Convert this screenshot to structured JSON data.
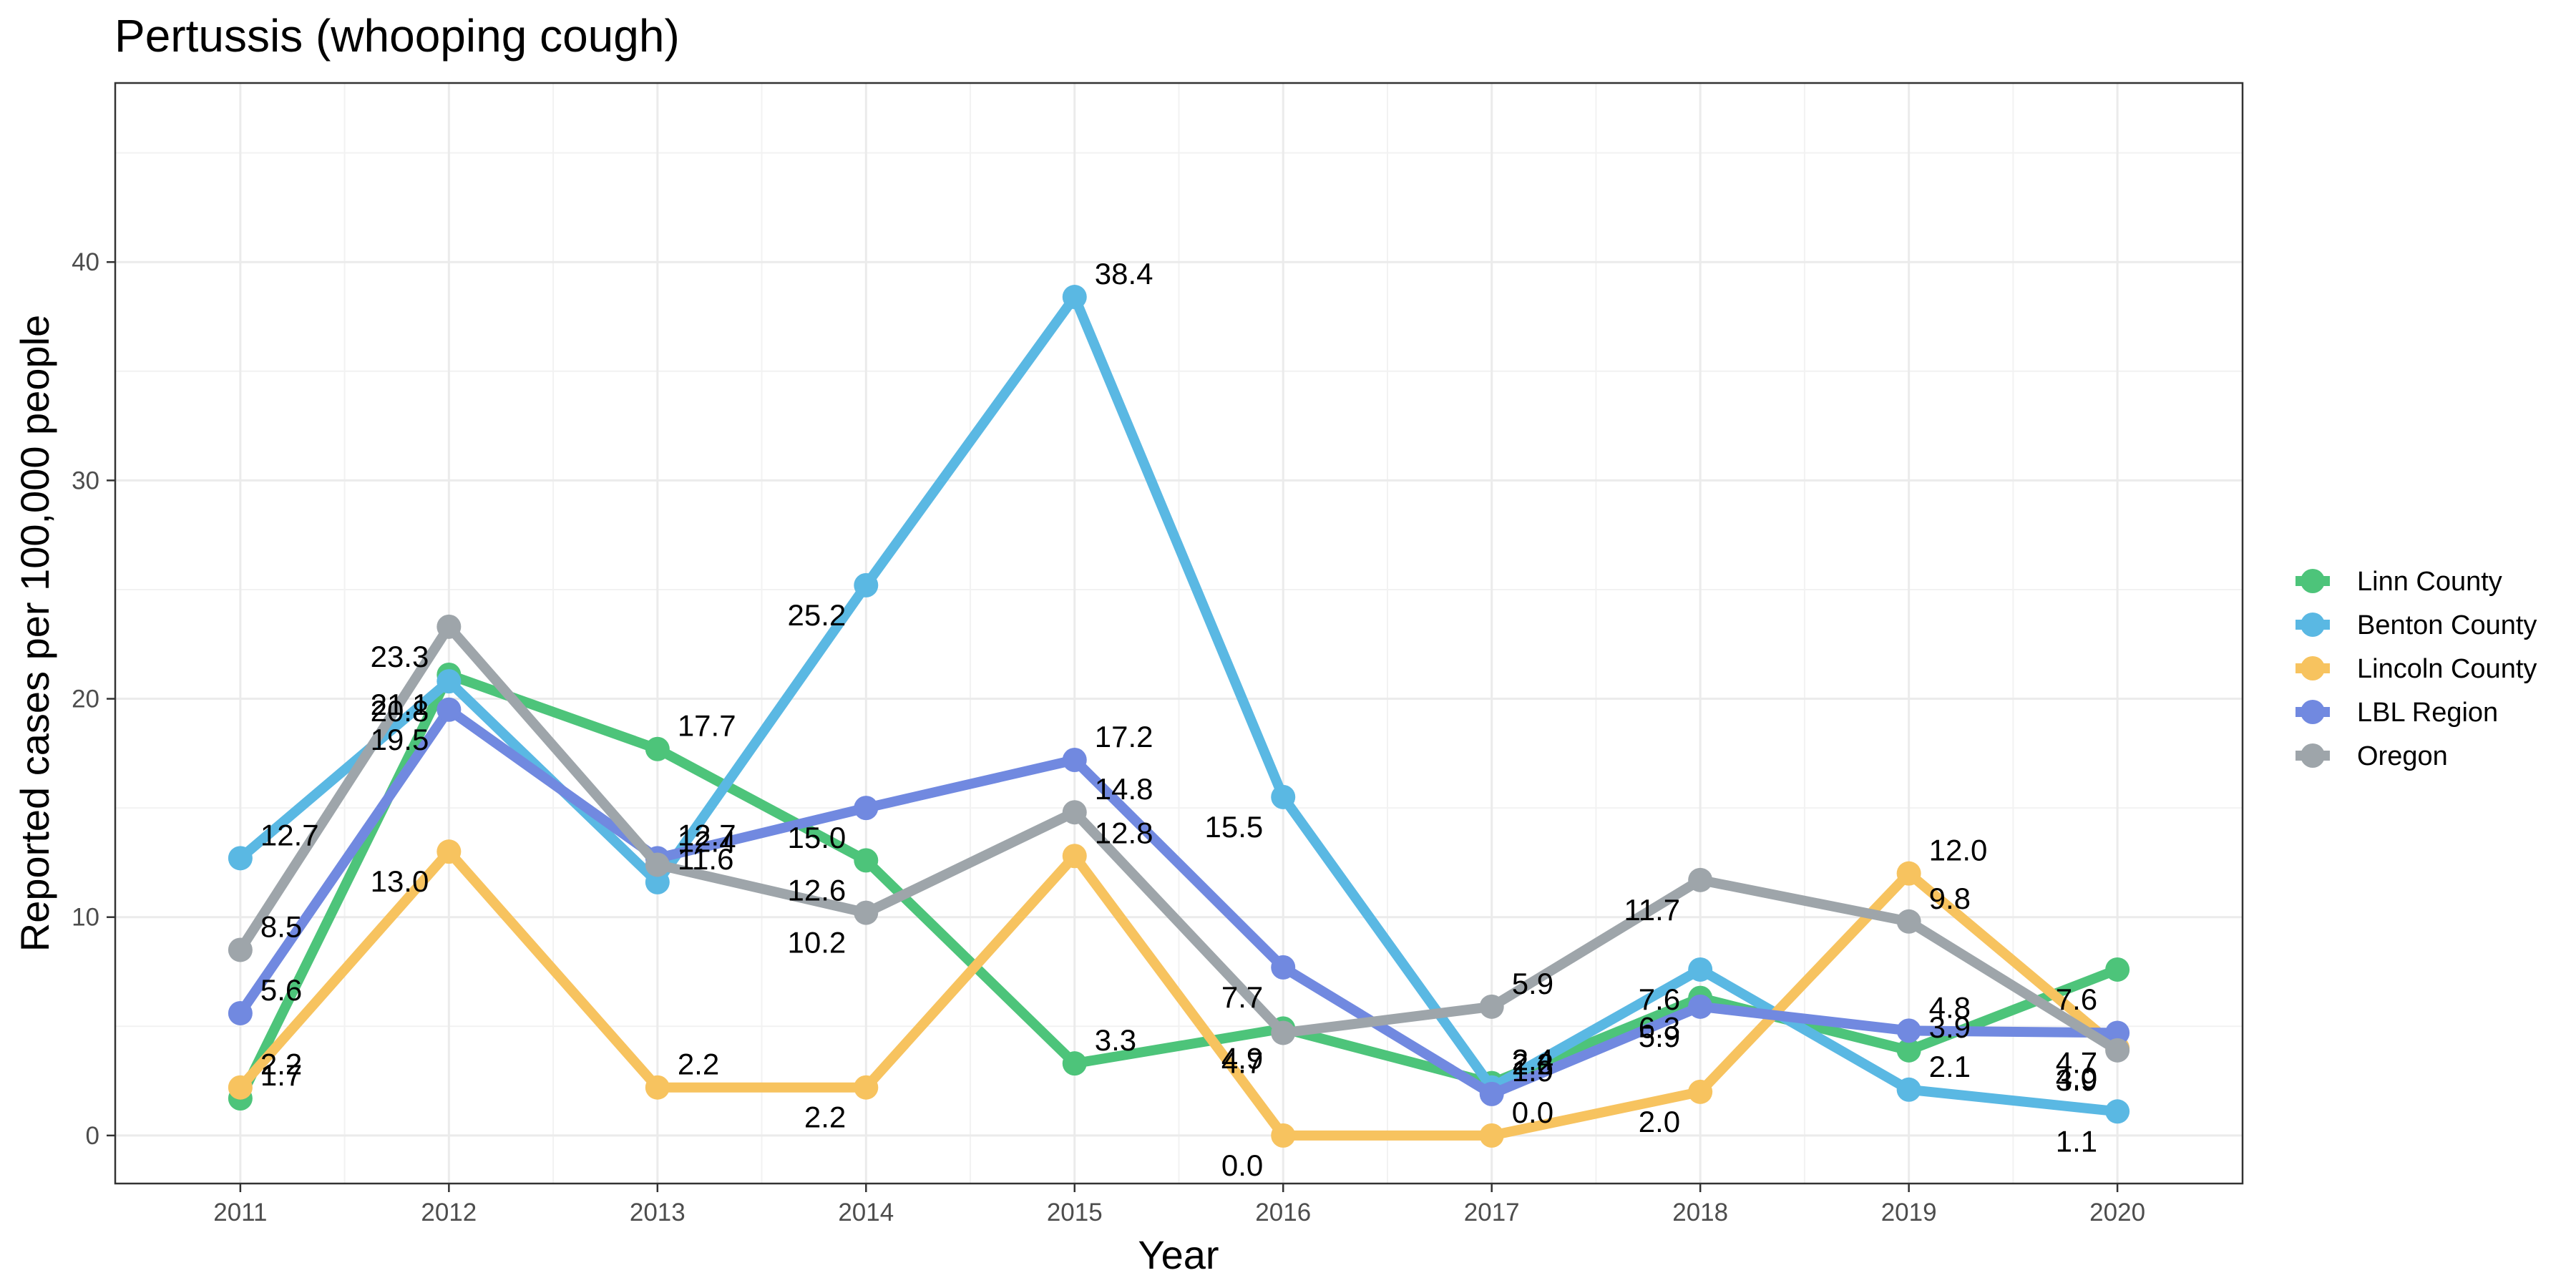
{
  "chart_data": {
    "type": "line",
    "title": "Pertussis (whooping cough)",
    "xlabel": "Year",
    "ylabel": "Reported cases per 100,000 people",
    "x": [
      2011,
      2012,
      2013,
      2014,
      2015,
      2016,
      2017,
      2018,
      2019,
      2020
    ],
    "xticks": [
      "2011",
      "2012",
      "2013",
      "2014",
      "2015",
      "2016",
      "2017",
      "2018",
      "2019",
      "2020"
    ],
    "yticks": [
      "0",
      "10",
      "20",
      "30",
      "40"
    ],
    "ytick_values": [
      0,
      10,
      20,
      30,
      40
    ],
    "xlim": [
      2010.4,
      2020.6
    ],
    "ylim": [
      -2.2,
      48.2
    ],
    "grid": true,
    "legend_position": "right",
    "series": [
      {
        "name": "Linn County",
        "color": "#4dc47a",
        "values": [
          1.7,
          21.1,
          17.7,
          12.6,
          3.3,
          4.9,
          2.4,
          6.3,
          3.9,
          7.6
        ],
        "labels": [
          "1.7",
          "21.1",
          "17.7",
          "12.6",
          "3.3",
          "4.9",
          "2.4",
          "6.3",
          "3.9",
          "7.6"
        ]
      },
      {
        "name": "Benton County",
        "color": "#5ab8e3",
        "values": [
          12.7,
          20.8,
          11.6,
          25.2,
          38.4,
          15.5,
          2.2,
          7.6,
          2.1,
          1.1
        ],
        "labels": [
          "12.7",
          "20.8",
          "11.6",
          "25.2",
          "38.4",
          "15.5",
          "2.2",
          "7.6",
          "2.1",
          "1.1"
        ]
      },
      {
        "name": "Lincoln County",
        "color": "#f7c35f",
        "values": [
          2.2,
          13.0,
          2.2,
          2.2,
          12.8,
          0.0,
          0.0,
          2.0,
          12.0,
          4.0
        ],
        "labels": [
          "2.2",
          "13.0",
          "2.2",
          "2.2",
          "12.8",
          "0.0",
          "0.0",
          "2.0",
          "12.0",
          "4.0"
        ]
      },
      {
        "name": "LBL Region",
        "color": "#7189e0",
        "values": [
          5.6,
          19.5,
          12.7,
          15.0,
          17.2,
          7.7,
          1.9,
          5.9,
          4.8,
          4.7
        ],
        "labels": [
          "5.6",
          "19.5",
          "12.7",
          "15.0",
          "17.2",
          "7.7",
          "1.9",
          "5.9",
          "4.8",
          "4.7"
        ]
      },
      {
        "name": "Oregon",
        "color": "#9ea5aa",
        "values": [
          8.5,
          23.3,
          12.4,
          10.2,
          14.8,
          4.7,
          5.9,
          11.7,
          9.8,
          3.9
        ],
        "labels": [
          "8.5",
          "23.3",
          "12.4",
          "10.2",
          "14.8",
          "4.7",
          "5.9",
          "11.7",
          "9.8",
          "3.9"
        ]
      }
    ]
  }
}
